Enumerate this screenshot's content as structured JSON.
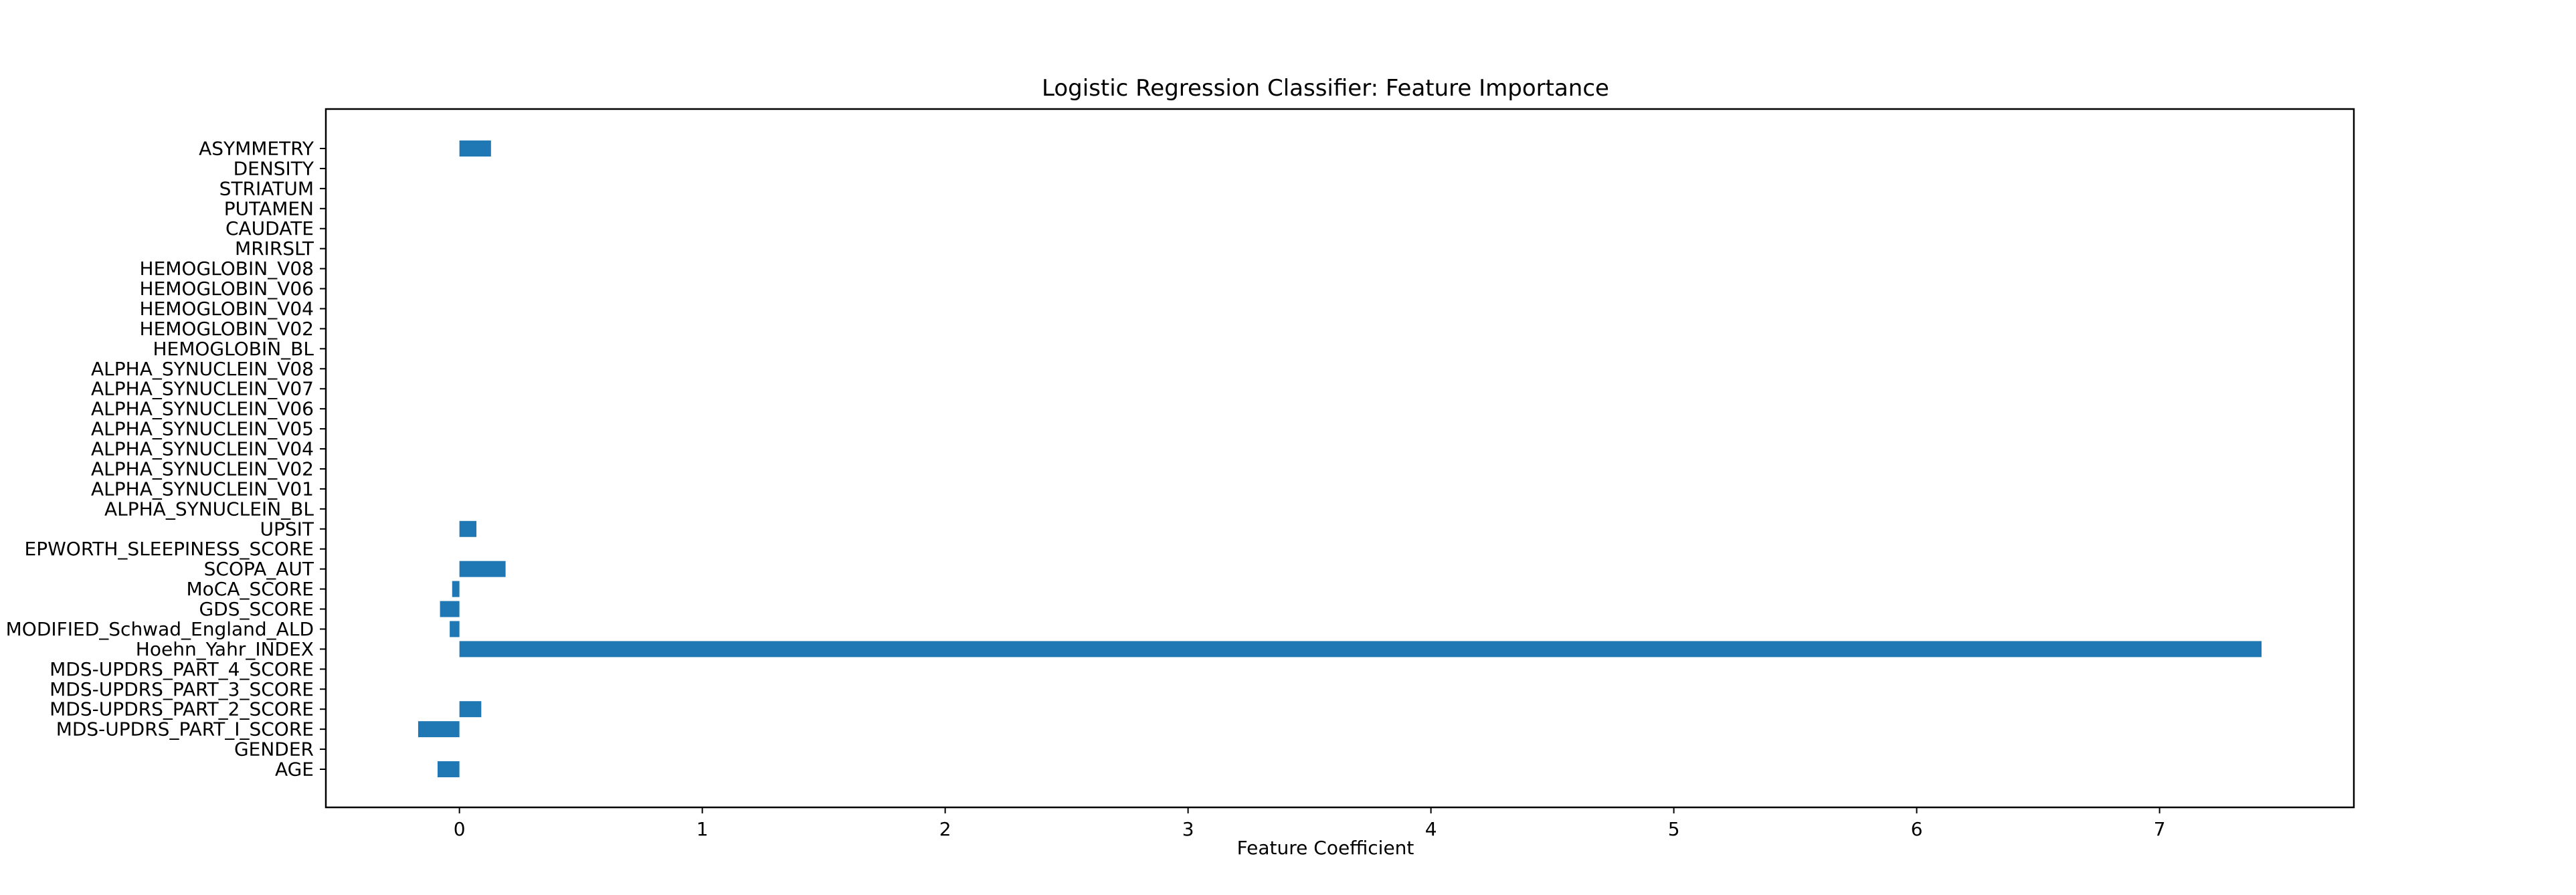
{
  "colors": {
    "bar": "#1f77b4",
    "axis": "#000000",
    "background": "#ffffff"
  },
  "chart_data": {
    "type": "bar",
    "orientation": "horizontal",
    "title": "Logistic Regression Classifier: Feature Importance",
    "xlabel": "Feature Coefficient",
    "ylabel": "",
    "xlim": [
      -0.55,
      7.8
    ],
    "x_ticks": [
      0,
      1,
      2,
      3,
      4,
      5,
      6,
      7
    ],
    "grid": false,
    "legend": "none",
    "categories": [
      "AGE",
      "GENDER",
      "MDS-UPDRS_PART_I_SCORE",
      "MDS-UPDRS_PART_2_SCORE",
      "MDS-UPDRS_PART_3_SCORE",
      "MDS-UPDRS_PART_4_SCORE",
      "Hoehn_Yahr_INDEX",
      "MODIFIED_Schwad_England_ALD",
      "GDS_SCORE",
      "MoCA_SCORE",
      "SCOPA_AUT",
      "EPWORTH_SLEEPINESS_SCORE",
      "UPSIT",
      "ALPHA_SYNUCLEIN_BL",
      "ALPHA_SYNUCLEIN_V01",
      "ALPHA_SYNUCLEIN_V02",
      "ALPHA_SYNUCLEIN_V04",
      "ALPHA_SYNUCLEIN_V05",
      "ALPHA_SYNUCLEIN_V06",
      "ALPHA_SYNUCLEIN_V07",
      "ALPHA_SYNUCLEIN_V08",
      "HEMOGLOBIN_BL",
      "HEMOGLOBIN_V02",
      "HEMOGLOBIN_V04",
      "HEMOGLOBIN_V06",
      "HEMOGLOBIN_V08",
      "MRIRSLT",
      "CAUDATE",
      "PUTAMEN",
      "STRIATUM",
      "DENSITY",
      "ASYMMETRY"
    ],
    "values": [
      -0.09,
      0.0,
      -0.17,
      0.09,
      0.0,
      0.0,
      7.42,
      -0.04,
      -0.08,
      -0.03,
      0.19,
      0.0,
      0.07,
      0.0,
      0.0,
      0.0,
      0.0,
      0.0,
      0.0,
      0.0,
      0.0,
      0.0,
      0.0,
      0.0,
      0.0,
      0.0,
      0.0,
      0.0,
      0.0,
      0.0,
      0.0,
      0.13
    ]
  }
}
